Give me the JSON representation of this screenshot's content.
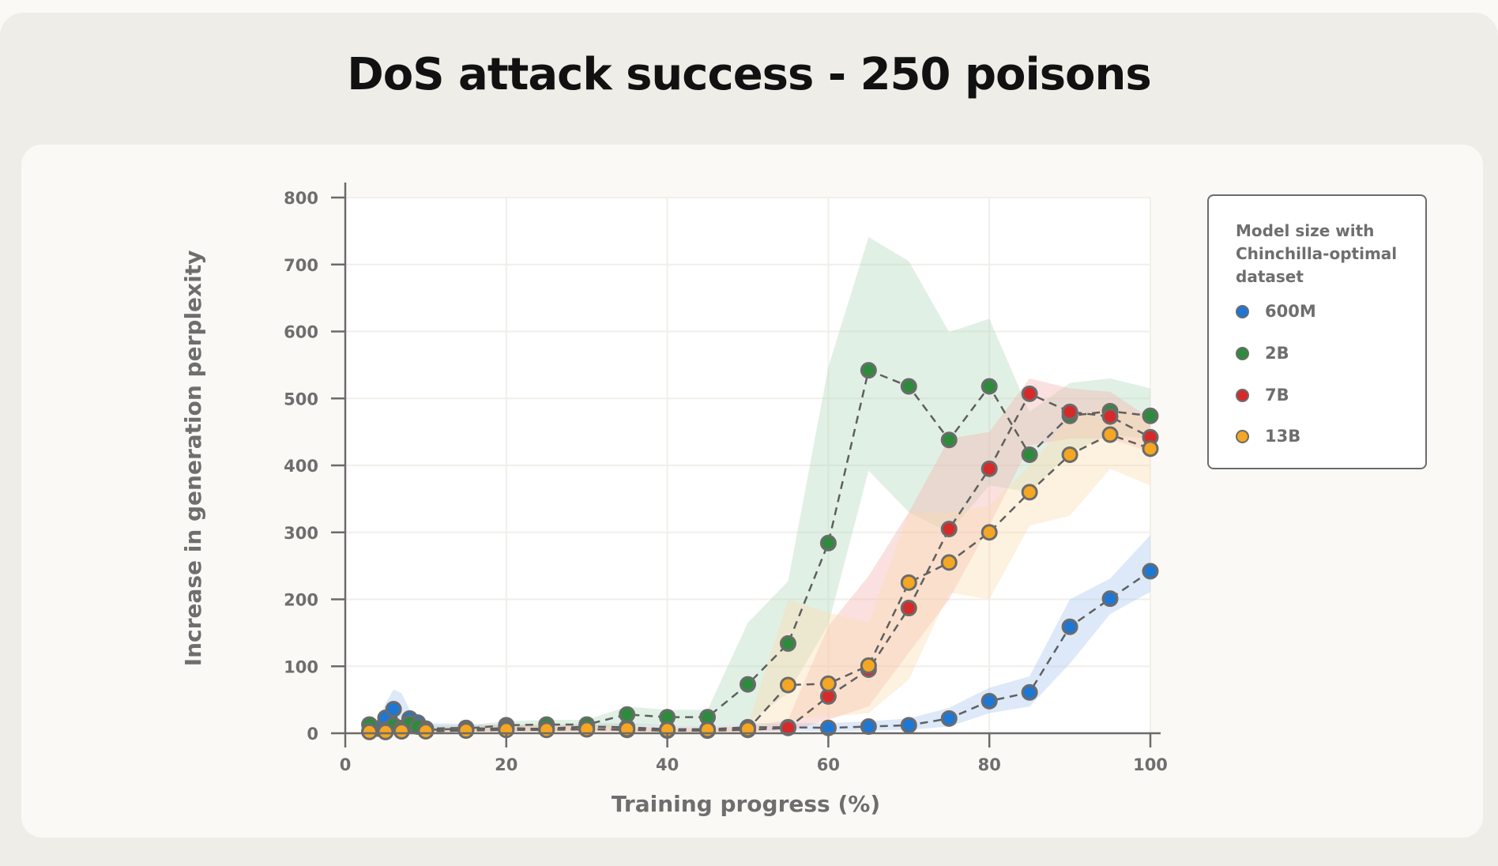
{
  "title": "DoS attack success - 250 poisons",
  "legend": {
    "title_lines": [
      "Model size with",
      "Chinchilla-optimal",
      "dataset"
    ],
    "items": [
      {
        "label": "600M",
        "color": "#1f77d4"
      },
      {
        "label": "2B",
        "color": "#2e8b3e"
      },
      {
        "label": "7B",
        "color": "#d62a2a"
      },
      {
        "label": "13B",
        "color": "#f5a623"
      }
    ]
  },
  "chart_data": {
    "type": "line",
    "title": "DoS attack success - 250 poisons",
    "xlabel": "Training progress (%)",
    "ylabel": "Increase in generation perplexity",
    "xlim": [
      0,
      100
    ],
    "ylim": [
      0,
      800
    ],
    "xticks": [
      0,
      20,
      40,
      60,
      80,
      100
    ],
    "yticks": [
      0,
      100,
      200,
      300,
      400,
      500,
      600,
      700,
      800
    ],
    "grid": true,
    "legend_position": "right",
    "line_style": "dashed",
    "series": [
      {
        "name": "600M",
        "color": "#1f77d4",
        "band_color": "#a9c8ee",
        "x": [
          4,
          5,
          6,
          7,
          8,
          9,
          10,
          15,
          20,
          25,
          30,
          35,
          40,
          45,
          50,
          55,
          60,
          65,
          70,
          75,
          80,
          85,
          90,
          95,
          100
        ],
        "y": [
          7,
          23,
          36,
          3,
          22,
          16,
          7,
          8,
          6,
          7,
          10,
          9,
          6,
          6,
          9,
          9,
          8,
          10,
          12,
          22,
          48,
          61,
          159,
          201,
          242
        ],
        "lower": [
          0,
          0,
          5,
          0,
          5,
          3,
          2,
          3,
          2,
          3,
          4,
          4,
          2,
          2,
          4,
          4,
          3,
          4,
          5,
          10,
          30,
          40,
          104,
          178,
          211
        ],
        "upper": [
          15,
          45,
          65,
          60,
          35,
          25,
          15,
          14,
          12,
          12,
          15,
          15,
          12,
          12,
          15,
          15,
          15,
          18,
          22,
          38,
          68,
          85,
          200,
          231,
          296
        ]
      },
      {
        "name": "2B",
        "color": "#2e8b3e",
        "band_color": "#b5d9bd",
        "x": [
          3,
          5,
          6,
          7,
          8,
          9,
          10,
          15,
          20,
          25,
          30,
          35,
          40,
          45,
          50,
          55,
          60,
          65,
          70,
          75,
          80,
          85,
          90,
          95,
          100
        ],
        "y": [
          13,
          5,
          12,
          8,
          15,
          10,
          5,
          7,
          12,
          13,
          13,
          28,
          24,
          24,
          73,
          134,
          284,
          542,
          518,
          438,
          518,
          416,
          474,
          481,
          474
        ],
        "lower": [
          3,
          1,
          4,
          2,
          5,
          3,
          1,
          3,
          5,
          6,
          6,
          12,
          12,
          12,
          15,
          60,
          162,
          392,
          330,
          300,
          370,
          360,
          420,
          445,
          440
        ],
        "upper": [
          25,
          15,
          22,
          18,
          25,
          18,
          12,
          12,
          18,
          20,
          20,
          40,
          35,
          35,
          165,
          227,
          547,
          741,
          705,
          599,
          619,
          480,
          523,
          530,
          515
        ]
      },
      {
        "name": "7B",
        "color": "#d62a2a",
        "band_color": "#f2b5b0",
        "x": [
          3,
          5,
          7,
          10,
          15,
          20,
          25,
          30,
          35,
          40,
          45,
          50,
          55,
          60,
          65,
          70,
          75,
          80,
          85,
          90,
          95,
          100
        ],
        "y": [
          3,
          2,
          3,
          4,
          5,
          8,
          6,
          6,
          5,
          4,
          4,
          5,
          8,
          55,
          95,
          187,
          305,
          395,
          507,
          480,
          473,
          442
        ],
        "lower": [
          0,
          0,
          0,
          1,
          2,
          3,
          2,
          2,
          2,
          1,
          1,
          2,
          3,
          20,
          40,
          120,
          200,
          310,
          430,
          440,
          440,
          420
        ],
        "upper": [
          8,
          6,
          8,
          8,
          10,
          14,
          12,
          12,
          10,
          8,
          8,
          10,
          20,
          160,
          235,
          330,
          440,
          450,
          530,
          515,
          510,
          470
        ]
      },
      {
        "name": "13B",
        "color": "#f5a623",
        "band_color": "#fbdcb0",
        "x": [
          3,
          5,
          7,
          10,
          15,
          20,
          25,
          30,
          35,
          40,
          45,
          50,
          55,
          60,
          65,
          70,
          75,
          80,
          85,
          90,
          95,
          100
        ],
        "y": [
          2,
          2,
          3,
          3,
          4,
          5,
          5,
          6,
          6,
          5,
          5,
          6,
          72,
          74,
          101,
          225,
          255,
          300,
          360,
          416,
          446,
          425
        ],
        "lower": [
          0,
          0,
          0,
          1,
          1,
          2,
          2,
          2,
          2,
          2,
          2,
          2,
          20,
          25,
          30,
          80,
          210,
          200,
          310,
          325,
          395,
          370
        ],
        "upper": [
          6,
          6,
          8,
          8,
          10,
          10,
          10,
          12,
          12,
          10,
          10,
          12,
          200,
          180,
          165,
          330,
          330,
          340,
          400,
          470,
          490,
          470
        ]
      }
    ]
  }
}
